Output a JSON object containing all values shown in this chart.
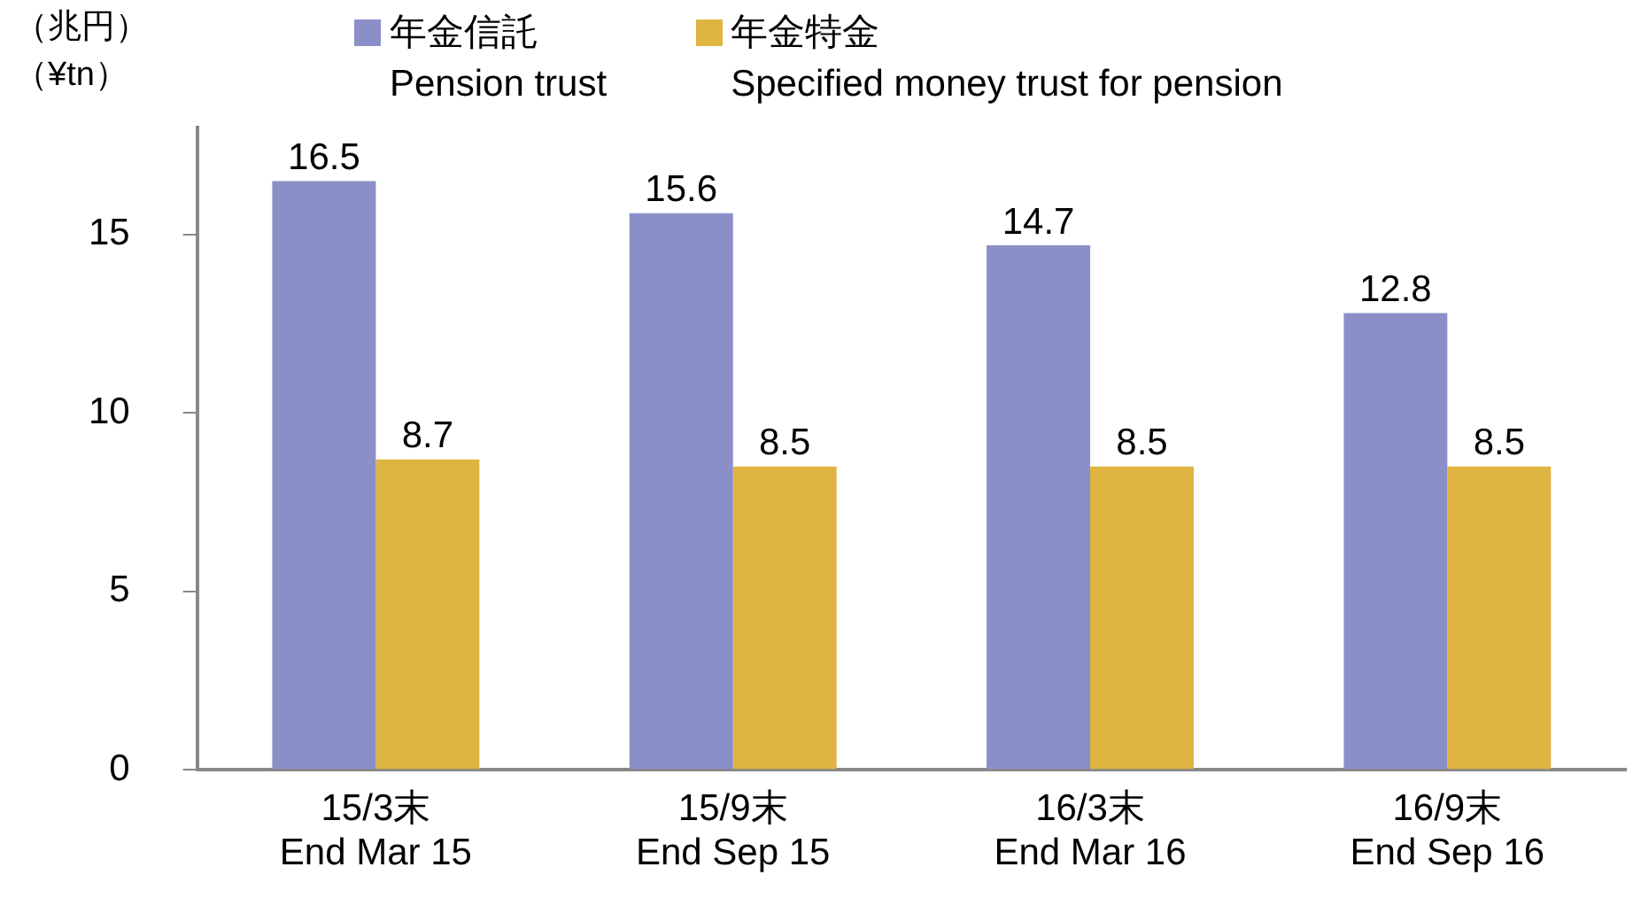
{
  "chart_data": {
    "type": "bar",
    "ylabel": "（兆円）（¥tn）",
    "categories": [
      "15/3末\nEnd Mar 15",
      "15/9末\nEnd Sep 15",
      "16/3末\nEnd Mar 16",
      "16/9末\nEnd Sep 16"
    ],
    "series": [
      {
        "name": "年金信託\nPension trust",
        "color": "#8b8fc8",
        "values": [
          16.5,
          15.6,
          14.7,
          12.8
        ]
      },
      {
        "name": "年金特金\nSpecified money trust for pension",
        "color": "#dfb441",
        "values": [
          8.7,
          8.5,
          8.5,
          8.5
        ]
      }
    ],
    "ylim": [
      0,
      18
    ],
    "yticks": [
      0,
      5,
      10,
      15
    ],
    "grid": false,
    "legend": "top",
    "data_labels": true
  }
}
